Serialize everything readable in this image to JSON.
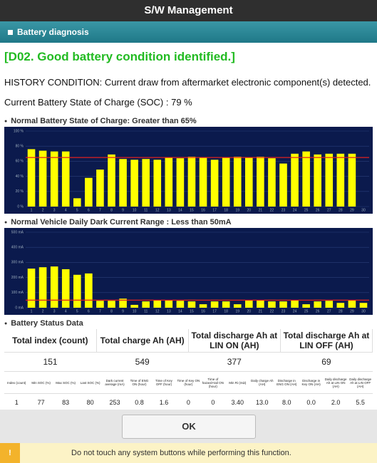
{
  "header": {
    "title": "S/W Management"
  },
  "section": {
    "title": "Battery diagnosis"
  },
  "message": "[D02. Good battery condition identified.]",
  "history": "HISTORY CONDITION: Current draw from aftermarket electronic component(s) detected.",
  "soc": "Current Battery State of Charge (SOC) : 79 %",
  "charts": [
    {
      "type": "bar",
      "title": "Normal Battery State of Charge: Greater than 65%",
      "color": "#ffff00",
      "categories": [
        "1",
        "2",
        "3",
        "4",
        "5",
        "6",
        "7",
        "8",
        "9",
        "10",
        "11",
        "12",
        "13",
        "14",
        "15",
        "16",
        "17",
        "18",
        "19",
        "20",
        "21",
        "22",
        "23",
        "24",
        "25",
        "26",
        "27",
        "28",
        "29",
        "30"
      ],
      "values": [
        76,
        74,
        73,
        73,
        11,
        38,
        49,
        69,
        63,
        62,
        63,
        62,
        65,
        64,
        66,
        65,
        62,
        65,
        66,
        65,
        66,
        64,
        57,
        70,
        73,
        69,
        70,
        70,
        70,
        null
      ],
      "ylim": [
        0,
        100
      ],
      "yticks": [
        {
          "value": 0,
          "label": "0 %"
        },
        {
          "value": 20,
          "label": "20 %"
        },
        {
          "value": 40,
          "label": "40 %"
        },
        {
          "value": 60,
          "label": "60 %"
        },
        {
          "value": 80,
          "label": "80 %"
        },
        {
          "value": 100,
          "label": "100 %"
        }
      ],
      "threshold": 65,
      "grid": true
    },
    {
      "type": "bar",
      "title": "Normal Vehicle Daily Dark Current Range : Less than 50mA",
      "color": "#ffff00",
      "categories": [
        "1",
        "2",
        "3",
        "4",
        "5",
        "6",
        "7",
        "8",
        "9",
        "10",
        "11",
        "12",
        "13",
        "14",
        "15",
        "16",
        "17",
        "18",
        "19",
        "20",
        "21",
        "22",
        "23",
        "24",
        "25",
        "26",
        "27",
        "28",
        "29",
        "30"
      ],
      "values": [
        259,
        268,
        273,
        255,
        218,
        227,
        46,
        46,
        60,
        19,
        42,
        51,
        51,
        46,
        42,
        23,
        42,
        42,
        23,
        51,
        51,
        42,
        42,
        51,
        23,
        42,
        46,
        32,
        51,
        32
      ],
      "ylim": [
        0,
        500
      ],
      "yticks": [
        {
          "value": 0,
          "label": "0 mA"
        },
        {
          "value": 100,
          "label": "100 mA"
        },
        {
          "value": 200,
          "label": "200 mA"
        },
        {
          "value": 300,
          "label": "300 mA"
        },
        {
          "value": 400,
          "label": "400 mA"
        },
        {
          "value": 500,
          "label": "500 mA"
        }
      ],
      "threshold": 50,
      "grid": true
    }
  ],
  "table": {
    "title": "Battery Status Data",
    "summary_header": [
      "Total index (count)",
      "Total charge Ah (AH)",
      "Total discharge Ah at LIN ON (AH)",
      "Total discharge Ah at LIN OFF (AH)"
    ],
    "summary_row": [
      "151",
      "549",
      "377",
      "69"
    ],
    "header": [
      "Index (count)",
      "Min SOC (%)",
      "Max SOC (%)",
      "Last SOC (%)",
      "Dark current average (mA)",
      "Time of ENG ON (hour)",
      "Time of Key OFF (hour)",
      "Time of Key ON (hour)",
      "Time of hazard+tail ON (hour)",
      "Min Ri (mΩ)",
      "Daily charge Ah (AH)",
      "Discharge in ENG ON (AH)",
      "Discharge in Key ON (AH)",
      "Daily discharge Ah at LIN ON (AH)",
      "Daily discharge Ah at LIN OFF (AH)"
    ],
    "rows": [
      [
        "1",
        "77",
        "83",
        "80",
        "253",
        "0.8",
        "1.6",
        "0",
        "0",
        "3.40",
        "13.0",
        "8.0",
        "0.0",
        "2.0",
        "5.5"
      ]
    ]
  },
  "button": "OK",
  "footer": "Do not touch any system buttons while performing this function."
}
